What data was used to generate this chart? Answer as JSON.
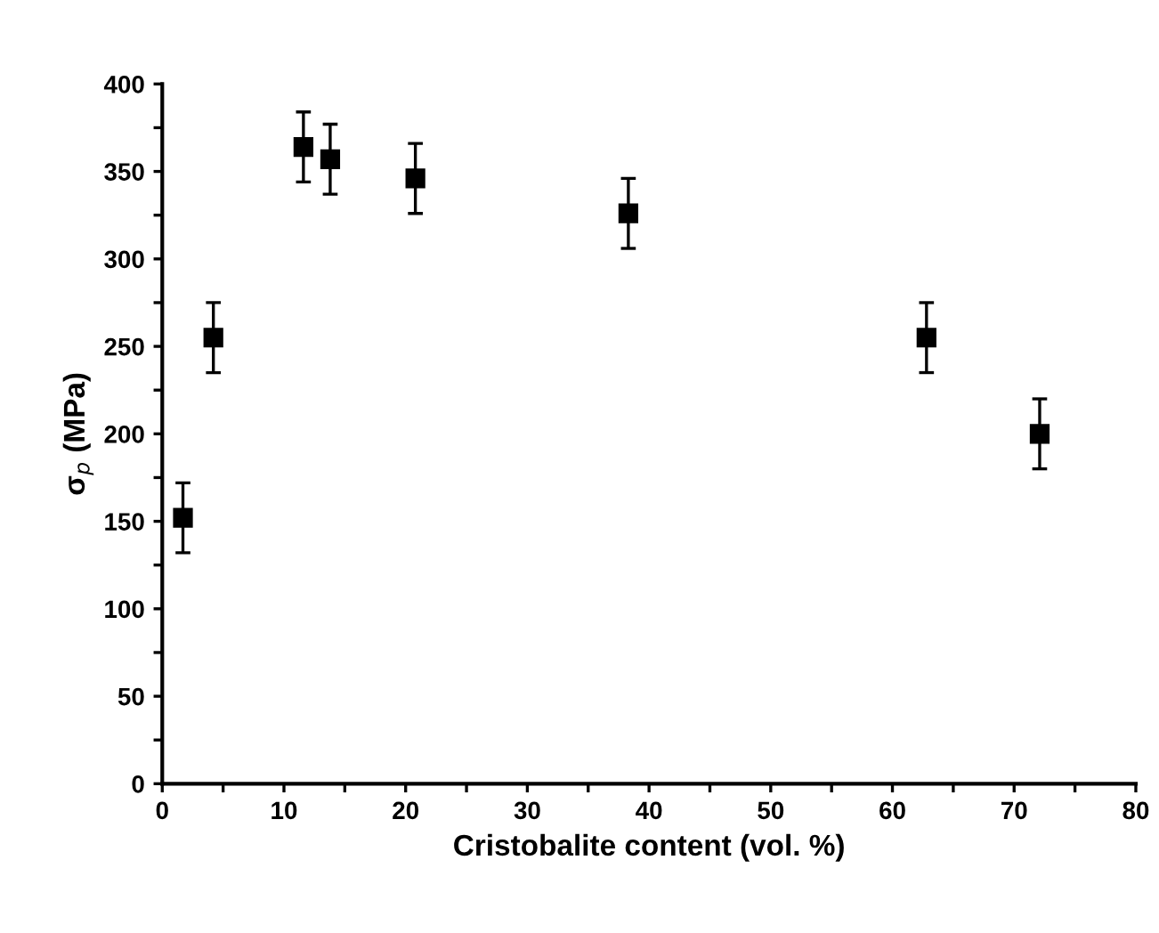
{
  "chart_data": {
    "type": "scatter",
    "xlabel": "Cristobalite content (vol. %)",
    "ylabel": "σ$_{p}$ (MPa)",
    "x": [
      1.7,
      4.2,
      11.6,
      13.8,
      20.8,
      38.3,
      62.8,
      72.1
    ],
    "values": [
      152,
      255,
      364,
      357,
      346,
      326,
      255,
      200
    ],
    "errors": [
      20,
      20,
      20,
      20,
      20,
      20,
      20,
      20
    ],
    "color": "#000000",
    "marker": "square",
    "xlim": [
      0,
      80
    ],
    "ylim": [
      0,
      400
    ],
    "xticks": [
      0,
      {
        "value": 5,
        "label": null
      },
      10,
      {
        "value": 15,
        "label": null
      },
      20,
      {
        "value": 25,
        "label": null
      },
      30,
      {
        "value": 35,
        "label": null
      },
      40,
      {
        "value": 45,
        "label": null
      },
      50,
      {
        "value": 55,
        "label": null
      },
      60,
      {
        "value": 65,
        "label": null
      },
      70,
      {
        "value": 75,
        "label": null
      },
      80
    ],
    "yticks": [
      0,
      {
        "value": 25,
        "label": null
      },
      50,
      {
        "value": 75,
        "label": null
      },
      100,
      {
        "value": 125,
        "label": null
      },
      150,
      {
        "value": 175,
        "label": null
      },
      200,
      {
        "value": 225,
        "label": null
      },
      250,
      {
        "value": 275,
        "label": null
      },
      300,
      {
        "value": 325,
        "label": null
      },
      350,
      {
        "value": 375,
        "label": null
      },
      400
    ],
    "grid": false,
    "legend": false
  }
}
